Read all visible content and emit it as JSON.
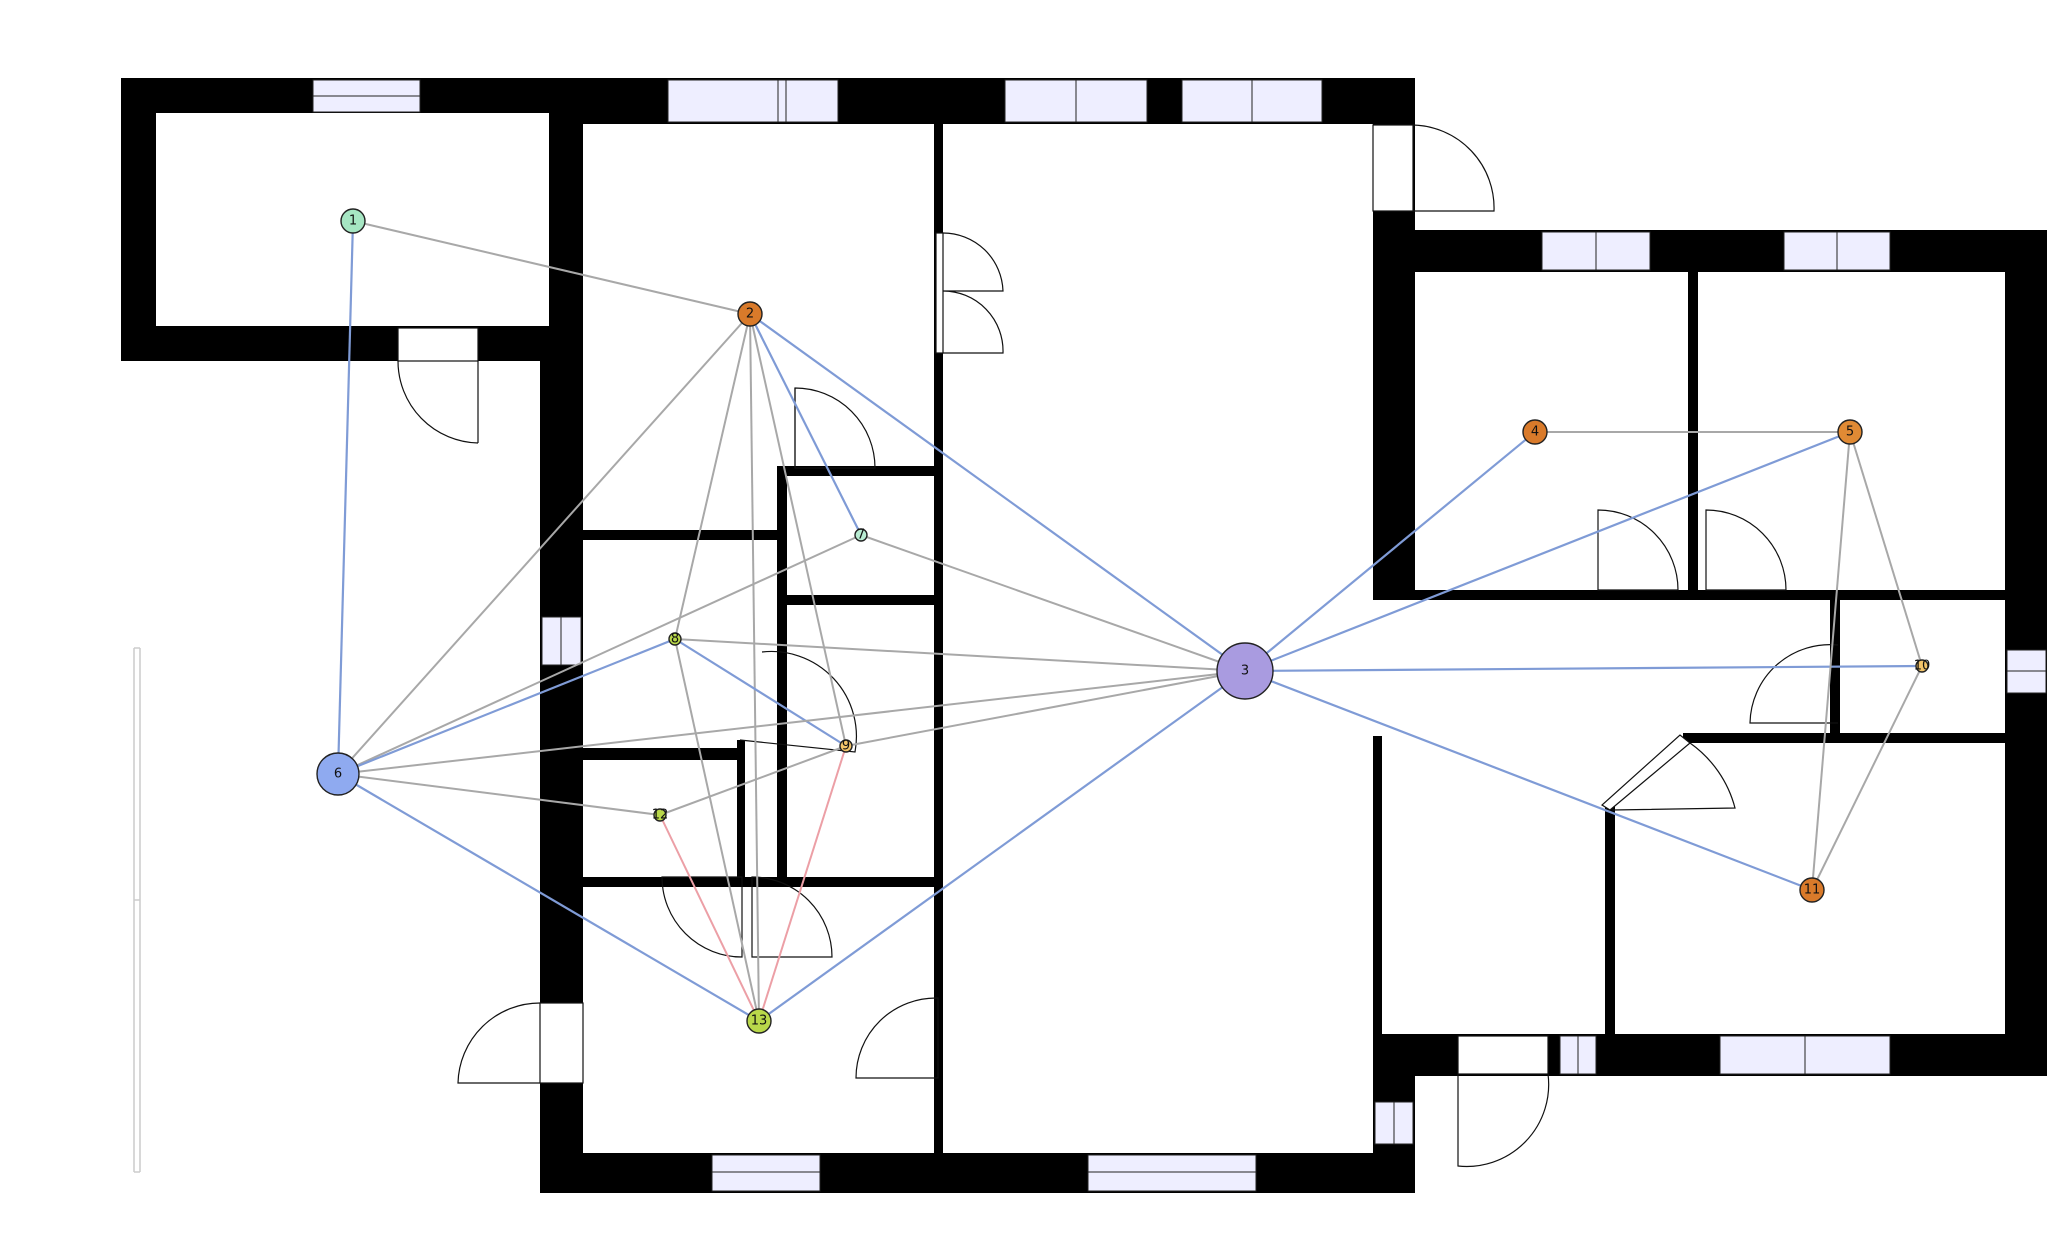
{
  "diagram": {
    "title": "",
    "nodes": [
      {
        "id": "1",
        "label": "1",
        "color": "#a6e6c3",
        "size": "small"
      },
      {
        "id": "2",
        "label": "2",
        "color": "#d97a2a",
        "size": "small"
      },
      {
        "id": "3",
        "label": "3",
        "color": "#a99be0",
        "size": "large"
      },
      {
        "id": "4",
        "label": "4",
        "color": "#d97a2a",
        "size": "small"
      },
      {
        "id": "5",
        "label": "5",
        "color": "#e08a34",
        "size": "small"
      },
      {
        "id": "6",
        "label": "6",
        "color": "#8faaf0",
        "size": "medium"
      },
      {
        "id": "7",
        "label": "7",
        "color": "#b8ecd2",
        "size": "tiny"
      },
      {
        "id": "8",
        "label": "8",
        "color": "#b9d84a",
        "size": "tiny"
      },
      {
        "id": "9",
        "label": "9",
        "color": "#f2c46a",
        "size": "tiny"
      },
      {
        "id": "10",
        "label": "10",
        "color": "#f2c46a",
        "size": "tiny"
      },
      {
        "id": "11",
        "label": "11",
        "color": "#d97a2a",
        "size": "small"
      },
      {
        "id": "12",
        "label": "12",
        "color": "#b9d84a",
        "size": "tiny"
      },
      {
        "id": "13",
        "label": "13",
        "color": "#b9d84a",
        "size": "small"
      }
    ],
    "edges": [
      {
        "from": "1",
        "to": "2",
        "kind": "gray"
      },
      {
        "from": "1",
        "to": "6",
        "kind": "blue"
      },
      {
        "from": "2",
        "to": "3",
        "kind": "blue"
      },
      {
        "from": "2",
        "to": "7",
        "kind": "blue"
      },
      {
        "from": "2",
        "to": "6",
        "kind": "gray"
      },
      {
        "from": "2",
        "to": "8",
        "kind": "gray"
      },
      {
        "from": "2",
        "to": "9",
        "kind": "gray"
      },
      {
        "from": "2",
        "to": "13",
        "kind": "gray"
      },
      {
        "from": "7",
        "to": "3",
        "kind": "gray"
      },
      {
        "from": "7",
        "to": "6",
        "kind": "gray"
      },
      {
        "from": "8",
        "to": "3",
        "kind": "gray"
      },
      {
        "from": "8",
        "to": "6",
        "kind": "blue"
      },
      {
        "from": "8",
        "to": "9",
        "kind": "blue"
      },
      {
        "from": "8",
        "to": "13",
        "kind": "gray"
      },
      {
        "from": "9",
        "to": "3",
        "kind": "gray"
      },
      {
        "from": "9",
        "to": "12",
        "kind": "gray"
      },
      {
        "from": "9",
        "to": "13",
        "kind": "pink"
      },
      {
        "from": "6",
        "to": "3",
        "kind": "gray"
      },
      {
        "from": "6",
        "to": "12",
        "kind": "gray"
      },
      {
        "from": "6",
        "to": "13",
        "kind": "blue"
      },
      {
        "from": "12",
        "to": "13",
        "kind": "pink"
      },
      {
        "from": "3",
        "to": "13",
        "kind": "blue"
      },
      {
        "from": "3",
        "to": "4",
        "kind": "blue"
      },
      {
        "from": "3",
        "to": "5",
        "kind": "blue"
      },
      {
        "from": "3",
        "to": "10",
        "kind": "blue"
      },
      {
        "from": "3",
        "to": "11",
        "kind": "blue"
      },
      {
        "from": "4",
        "to": "5",
        "kind": "gray"
      },
      {
        "from": "5",
        "to": "10",
        "kind": "gray"
      },
      {
        "from": "5",
        "to": "11",
        "kind": "gray"
      },
      {
        "from": "10",
        "to": "11",
        "kind": "gray"
      }
    ],
    "colors": {
      "wall": "#000000",
      "window_fill": "#eeeeff",
      "edge_gray": "#a8a8a8",
      "edge_blue": "#7f9bd6",
      "edge_pink": "#ec9fa6",
      "node_stroke": "#222222",
      "scale_bar": "#cccccc"
    }
  }
}
